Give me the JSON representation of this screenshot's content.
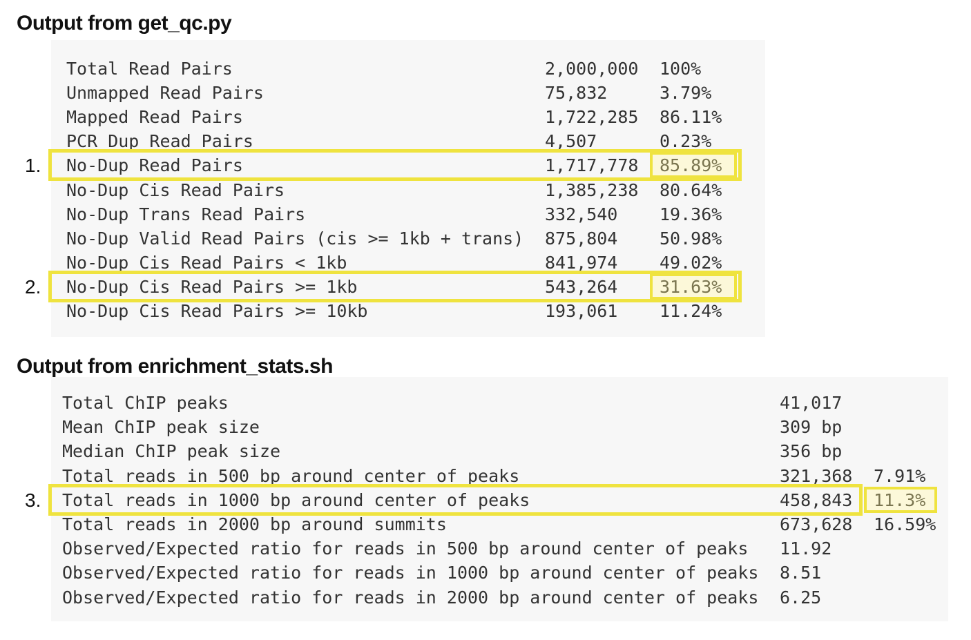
{
  "qc_section": {
    "heading": "Output from get_qc.py",
    "rows": [
      {
        "label": "Total Read Pairs",
        "count": "2,000,000",
        "percent": "100%"
      },
      {
        "label": "Unmapped Read Pairs",
        "count": "75,832",
        "percent": "3.79%"
      },
      {
        "label": "Mapped Read Pairs",
        "count": "1,722,285",
        "percent": "86.11%"
      },
      {
        "label": "PCR Dup Read Pairs",
        "count": "4,507",
        "percent": "0.23%"
      },
      {
        "label": "No-Dup Read Pairs",
        "count": "1,717,778",
        "percent": "85.89%",
        "highlight": true,
        "marker": "1."
      },
      {
        "label": "No-Dup Cis Read Pairs",
        "count": "1,385,238",
        "percent": "80.64%"
      },
      {
        "label": "No-Dup Trans Read Pairs",
        "count": "332,540",
        "percent": "19.36%"
      },
      {
        "label": "No-Dup Valid Read Pairs (cis >= 1kb + trans)",
        "count": "875,804",
        "percent": "50.98%"
      },
      {
        "label": "No-Dup Cis Read Pairs < 1kb",
        "count": "841,974",
        "percent": "49.02%"
      },
      {
        "label": "No-Dup Cis Read Pairs >= 1kb",
        "count": "543,264",
        "percent": "31.63%",
        "highlight": true,
        "marker": "2."
      },
      {
        "label": "No-Dup Cis Read Pairs >= 10kb",
        "count": "193,061",
        "percent": "11.24%"
      }
    ]
  },
  "enrichment_section": {
    "heading": "Output from enrichment_stats.sh",
    "rows": [
      {
        "label": "Total ChIP peaks",
        "value": "41,017",
        "percent": ""
      },
      {
        "label": "Mean ChIP peak size",
        "value": "309 bp",
        "percent": ""
      },
      {
        "label": "Median ChIP peak size",
        "value": "356 bp",
        "percent": ""
      },
      {
        "label": "Total reads in 500 bp around center of peaks",
        "value": "321,368",
        "percent": "7.91%"
      },
      {
        "label": "Total reads in 1000 bp around center of peaks",
        "value": "458,843",
        "percent": "11.3%",
        "highlight": true,
        "marker": "3."
      },
      {
        "label": "Total reads in 2000 bp around summits",
        "value": "673,628",
        "percent": "16.59%"
      },
      {
        "label": "Observed/Expected ratio for reads in 500 bp around center of peaks",
        "value": "11.92",
        "percent": ""
      },
      {
        "label": "Observed/Expected ratio for reads in 1000 bp around center of peaks",
        "value": "8.51",
        "percent": ""
      },
      {
        "label": "Observed/Expected ratio for reads in 2000 bp around center of peaks",
        "value": "6.25",
        "percent": ""
      }
    ]
  },
  "colors": {
    "highlight_border": "#efe33f",
    "highlight_fill": "#fcf8d9",
    "code_background": "#f7f7f7",
    "code_text": "#333333"
  }
}
